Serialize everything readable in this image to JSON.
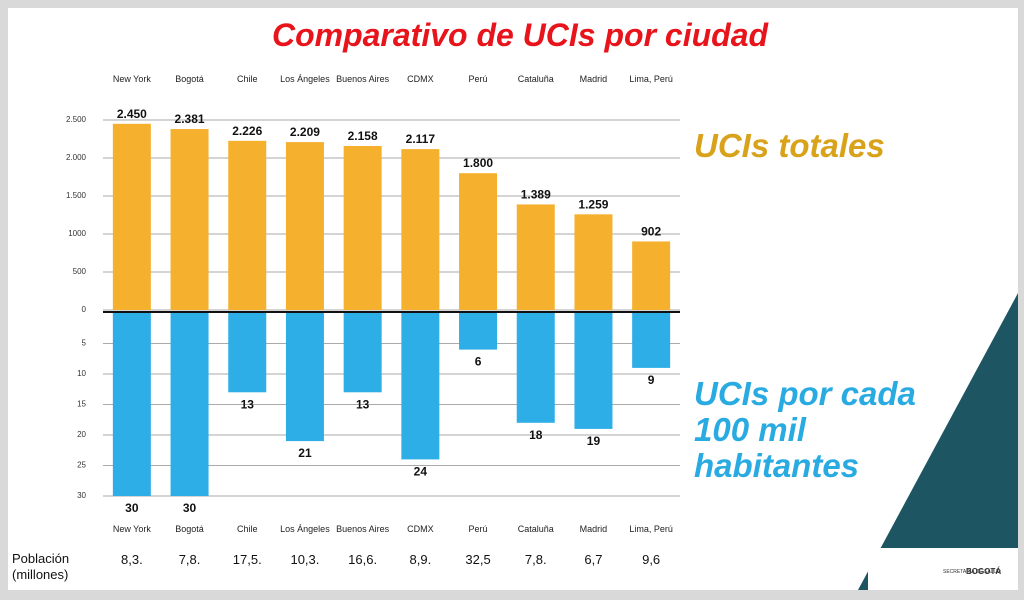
{
  "chart_data": [
    {
      "type": "bar",
      "title": "Comparativo de UCIs por ciudad",
      "annotation": "UCIs totales",
      "categories": [
        "New York",
        "Bogotá",
        "Chile",
        "Los Ángeles",
        "Buenos Aires",
        "CDMX",
        "Perú",
        "Cataluña",
        "Madrid",
        "Lima, Perú"
      ],
      "values": [
        2450,
        2381,
        2226,
        2209,
        2158,
        2117,
        1800,
        1389,
        1259,
        902
      ],
      "value_labels": [
        "2.450",
        "2.381",
        "2.226",
        "2.209",
        "2.158",
        "2.117",
        "1.800",
        "1.389",
        "1.259",
        "902"
      ],
      "color": "#f5b02e",
      "ylim": [
        0,
        2500
      ],
      "yticks": [
        0,
        500,
        1000,
        {
          "value": 1500,
          "label": "1.500"
        },
        {
          "value": 2000,
          "label": "2.000"
        },
        {
          "value": 2500,
          "label": "2.500"
        }
      ],
      "grid": true
    },
    {
      "type": "bar",
      "annotation": [
        "UCIs por cada",
        "100 mil",
        "habitantes"
      ],
      "categories": [
        "New York",
        "Bogotá",
        "Chile",
        "Los Ángeles",
        "Buenos Aires",
        "CDMX",
        "Perú",
        "Cataluña",
        "Madrid",
        "Lima, Perú"
      ],
      "values": [
        30,
        30,
        13,
        21,
        13,
        24,
        6,
        18,
        19,
        9
      ],
      "color": "#2eaee6",
      "ylim": [
        0,
        30
      ],
      "y_inverted": true,
      "yticks": [
        5,
        10,
        15,
        20,
        25,
        30
      ],
      "grid": true
    }
  ],
  "population": {
    "label": [
      "Población",
      "(millones)"
    ],
    "values": [
      "8,3.",
      "7,8.",
      "17,5.",
      "10,3.",
      "16,6.",
      "8,9.",
      "32,5",
      "7,8.",
      "6,7",
      "9,6"
    ]
  },
  "footer": {
    "logo_text": [
      "SECRETARÍA DE SALUD",
      "BOGOTÁ"
    ]
  }
}
